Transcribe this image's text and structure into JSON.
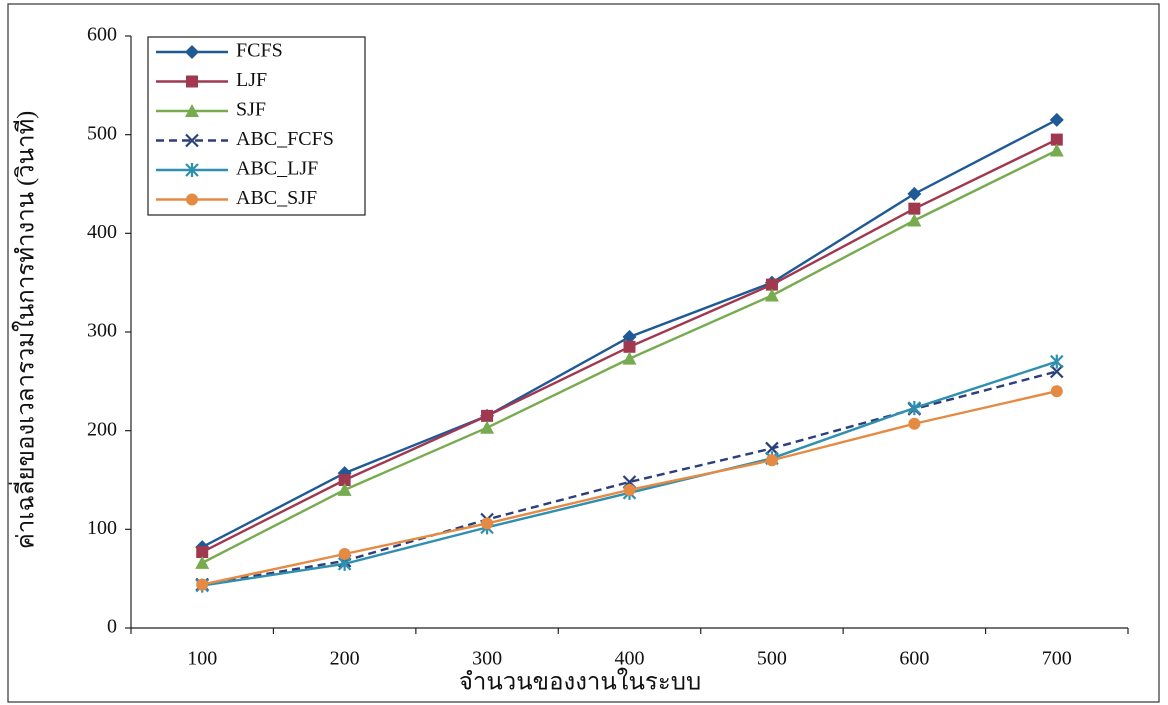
{
  "chart_data": {
    "type": "line",
    "y_label": "ค่าเฉลี่ยของเวลารวมในการทำงาน (วินาที)",
    "x_label": "จำนวนของงานในระบบ",
    "categories": [
      100,
      200,
      300,
      400,
      500,
      600,
      700
    ],
    "ylim": [
      0,
      600
    ],
    "yticks": [
      0,
      100,
      200,
      300,
      400,
      500,
      600
    ],
    "legend": "upper-left",
    "series": [
      {
        "name": "FCFS",
        "color": "#1f5a96",
        "marker": "diamond",
        "dashed": false,
        "values": [
          82,
          157,
          215,
          295,
          350,
          440,
          515
        ]
      },
      {
        "name": "LJF",
        "color": "#a0384f",
        "marker": "square",
        "dashed": false,
        "values": [
          77,
          150,
          215,
          285,
          348,
          425,
          495
        ]
      },
      {
        "name": "SJF",
        "color": "#77ab4f",
        "marker": "triangle",
        "dashed": false,
        "values": [
          66,
          140,
          203,
          273,
          337,
          413,
          484
        ]
      },
      {
        "name": "ABC_FCFS",
        "color": "#2b3f7a",
        "marker": "x",
        "dashed": true,
        "values": [
          44,
          68,
          110,
          148,
          182,
          222,
          260
        ]
      },
      {
        "name": "ABC_LJF",
        "color": "#2e8fb0",
        "marker": "star",
        "dashed": false,
        "values": [
          43,
          65,
          102,
          137,
          172,
          223,
          270
        ]
      },
      {
        "name": "ABC_SJF",
        "color": "#e58a43",
        "marker": "circle",
        "dashed": false,
        "values": [
          44,
          75,
          106,
          140,
          170,
          207,
          240
        ]
      }
    ]
  }
}
